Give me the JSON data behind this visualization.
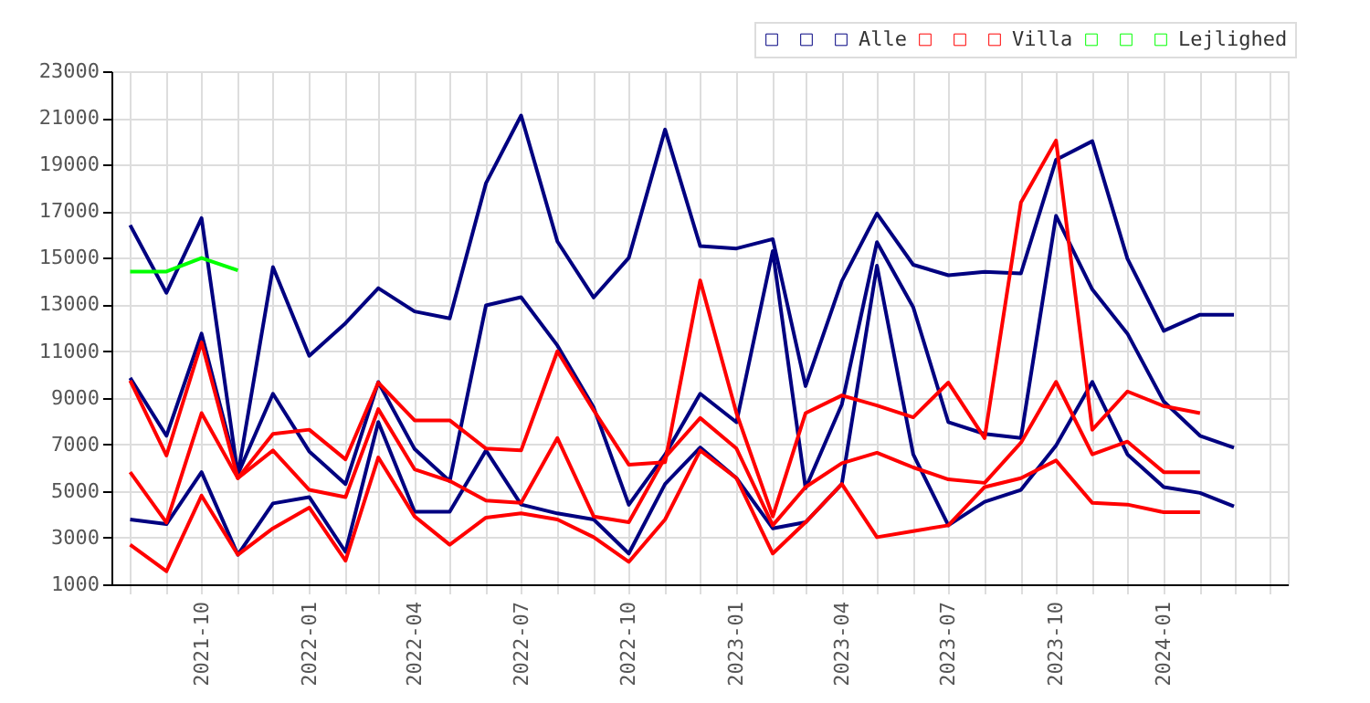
{
  "chart_data": {
    "type": "line",
    "x": [
      "2021-08",
      "2021-09",
      "2021-10",
      "2021-11",
      "2021-12",
      "2022-01",
      "2022-02",
      "2022-03",
      "2022-04",
      "2022-05",
      "2022-06",
      "2022-07",
      "2022-08",
      "2022-09",
      "2022-10",
      "2022-11",
      "2022-12",
      "2023-01",
      "2023-02",
      "2023-03",
      "2023-04",
      "2023-05",
      "2023-06",
      "2023-07",
      "2023-08",
      "2023-09",
      "2023-10",
      "2023-11",
      "2023-12",
      "2024-01",
      "2024-02",
      "2024-03"
    ],
    "series": [
      {
        "color": "#000080",
        "values": [
          16400,
          13500,
          16700,
          5700,
          14600,
          10800,
          12200,
          13700,
          12700,
          12400,
          18200,
          21100,
          15700,
          13300,
          15000,
          20500,
          15500,
          15400,
          15800,
          9500,
          14000,
          16900,
          14700,
          14250,
          14400,
          14330,
          19200,
          20000,
          14960,
          11870,
          12560,
          12560
        ]
      },
      {
        "color": "#000080",
        "values": [
          3780,
          3580,
          5810,
          2270,
          4470,
          4740,
          2390,
          7960,
          4110,
          4110,
          6740,
          4420,
          4040,
          3780,
          2320,
          5300,
          6870,
          5550,
          3400,
          3660,
          5300,
          14660,
          6570,
          3530,
          4540,
          5050,
          6950,
          9680,
          6570,
          5170,
          4920,
          4340
        ]
      },
      {
        "name": "Alle",
        "color": "#000080",
        "values": [
          9850,
          7370,
          11750,
          5720,
          9170,
          6700,
          5300,
          9670,
          6800,
          5420,
          12960,
          13310,
          11240,
          8580,
          4410,
          6560,
          9170,
          7950,
          15290,
          5120,
          8710,
          15670,
          12880,
          7950,
          7450,
          7270,
          16800,
          13640,
          11750,
          8840,
          7370,
          6860
        ]
      },
      {
        "color": "#ff0000",
        "values": [
          9730,
          6520,
          11370,
          5550,
          7450,
          7630,
          6360,
          9650,
          8030,
          8030,
          6820,
          6740,
          10990,
          8460,
          6130,
          6240,
          14030,
          8340,
          3910,
          8340,
          9100,
          8670,
          8160,
          9650,
          7270,
          17370,
          20030,
          7630,
          9270,
          8640,
          8340,
          null
        ]
      },
      {
        "color": "#ff0000",
        "values": [
          2700,
          1560,
          4800,
          2270,
          3400,
          4290,
          2010,
          6440,
          3910,
          2700,
          3860,
          4040,
          3780,
          3020,
          1960,
          3780,
          6740,
          5550,
          2320,
          3660,
          5300,
          3020,
          3280,
          3530,
          5170,
          5550,
          6310,
          4490,
          4420,
          4090,
          4090,
          null
        ]
      },
      {
        "name": "Villa",
        "color": "#ff0000",
        "values": [
          5810,
          3650,
          8340,
          5550,
          6740,
          5050,
          4740,
          8510,
          5930,
          5430,
          4590,
          4490,
          7270,
          3910,
          3660,
          6440,
          8130,
          6820,
          3530,
          5170,
          6190,
          6640,
          6010,
          5500,
          5350,
          7070,
          9680,
          6570,
          7120,
          5810,
          5810,
          null
        ]
      },
      {
        "color": "#00ff00",
        "values": [
          null,
          null,
          null,
          null,
          null,
          null,
          null,
          null,
          null,
          null,
          null,
          null,
          null,
          null,
          null,
          null,
          null,
          null,
          null,
          null,
          null,
          null,
          null,
          null,
          null,
          null,
          null,
          null,
          null,
          null,
          null,
          null
        ]
      },
      {
        "color": "#00ff00",
        "values": [
          null,
          null,
          null,
          null,
          null,
          null,
          null,
          null,
          null,
          null,
          null,
          null,
          null,
          null,
          null,
          null,
          null,
          null,
          null,
          null,
          null,
          null,
          null,
          null,
          null,
          null,
          null,
          null,
          null,
          null,
          null,
          null
        ]
      },
      {
        "name": "Lejlighed",
        "color": "#00ff00",
        "values": [
          14410,
          14410,
          14990,
          14460,
          null,
          null,
          null,
          null,
          null,
          null,
          null,
          null,
          null,
          null,
          null,
          null,
          null,
          null,
          null,
          null,
          null,
          null,
          null,
          null,
          null,
          null,
          null,
          null,
          null,
          null,
          null,
          null
        ]
      }
    ],
    "xlim": [
      "2021-07-16",
      "2024-04-16"
    ],
    "xticks": [
      {
        "value": "2021-08",
        "label": null
      },
      {
        "value": "2021-09",
        "label": null
      },
      "2021-10",
      {
        "value": "2021-11",
        "label": null
      },
      {
        "value": "2021-12",
        "label": null
      },
      "2022-01",
      {
        "value": "2022-02",
        "label": null
      },
      {
        "value": "2022-03",
        "label": null
      },
      "2022-04",
      {
        "value": "2022-05",
        "label": null
      },
      {
        "value": "2022-06",
        "label": null
      },
      "2022-07",
      {
        "value": "2022-08",
        "label": null
      },
      {
        "value": "2022-09",
        "label": null
      },
      "2022-10",
      {
        "value": "2022-11",
        "label": null
      },
      {
        "value": "2022-12",
        "label": null
      },
      "2023-01",
      {
        "value": "2023-02",
        "label": null
      },
      {
        "value": "2023-03",
        "label": null
      },
      "2023-04",
      {
        "value": "2023-05",
        "label": null
      },
      {
        "value": "2023-06",
        "label": null
      },
      "2023-07",
      {
        "value": "2023-08",
        "label": null
      },
      {
        "value": "2023-09",
        "label": null
      },
      "2023-10",
      {
        "value": "2023-11",
        "label": null
      },
      {
        "value": "2023-12",
        "label": null
      },
      "2024-01",
      {
        "value": "2024-02",
        "label": null
      },
      {
        "value": "2024-03",
        "label": null
      },
      {
        "value": "2024-04",
        "label": null
      }
    ],
    "ylim": [
      1000,
      23000
    ],
    "yticks": [
      1000,
      3000,
      5000,
      7000,
      9000,
      11000,
      13000,
      15000,
      17000,
      19000,
      21000,
      23000
    ],
    "grid": true,
    "legend": "top right",
    "marker": "none",
    "line_style": "solid"
  }
}
